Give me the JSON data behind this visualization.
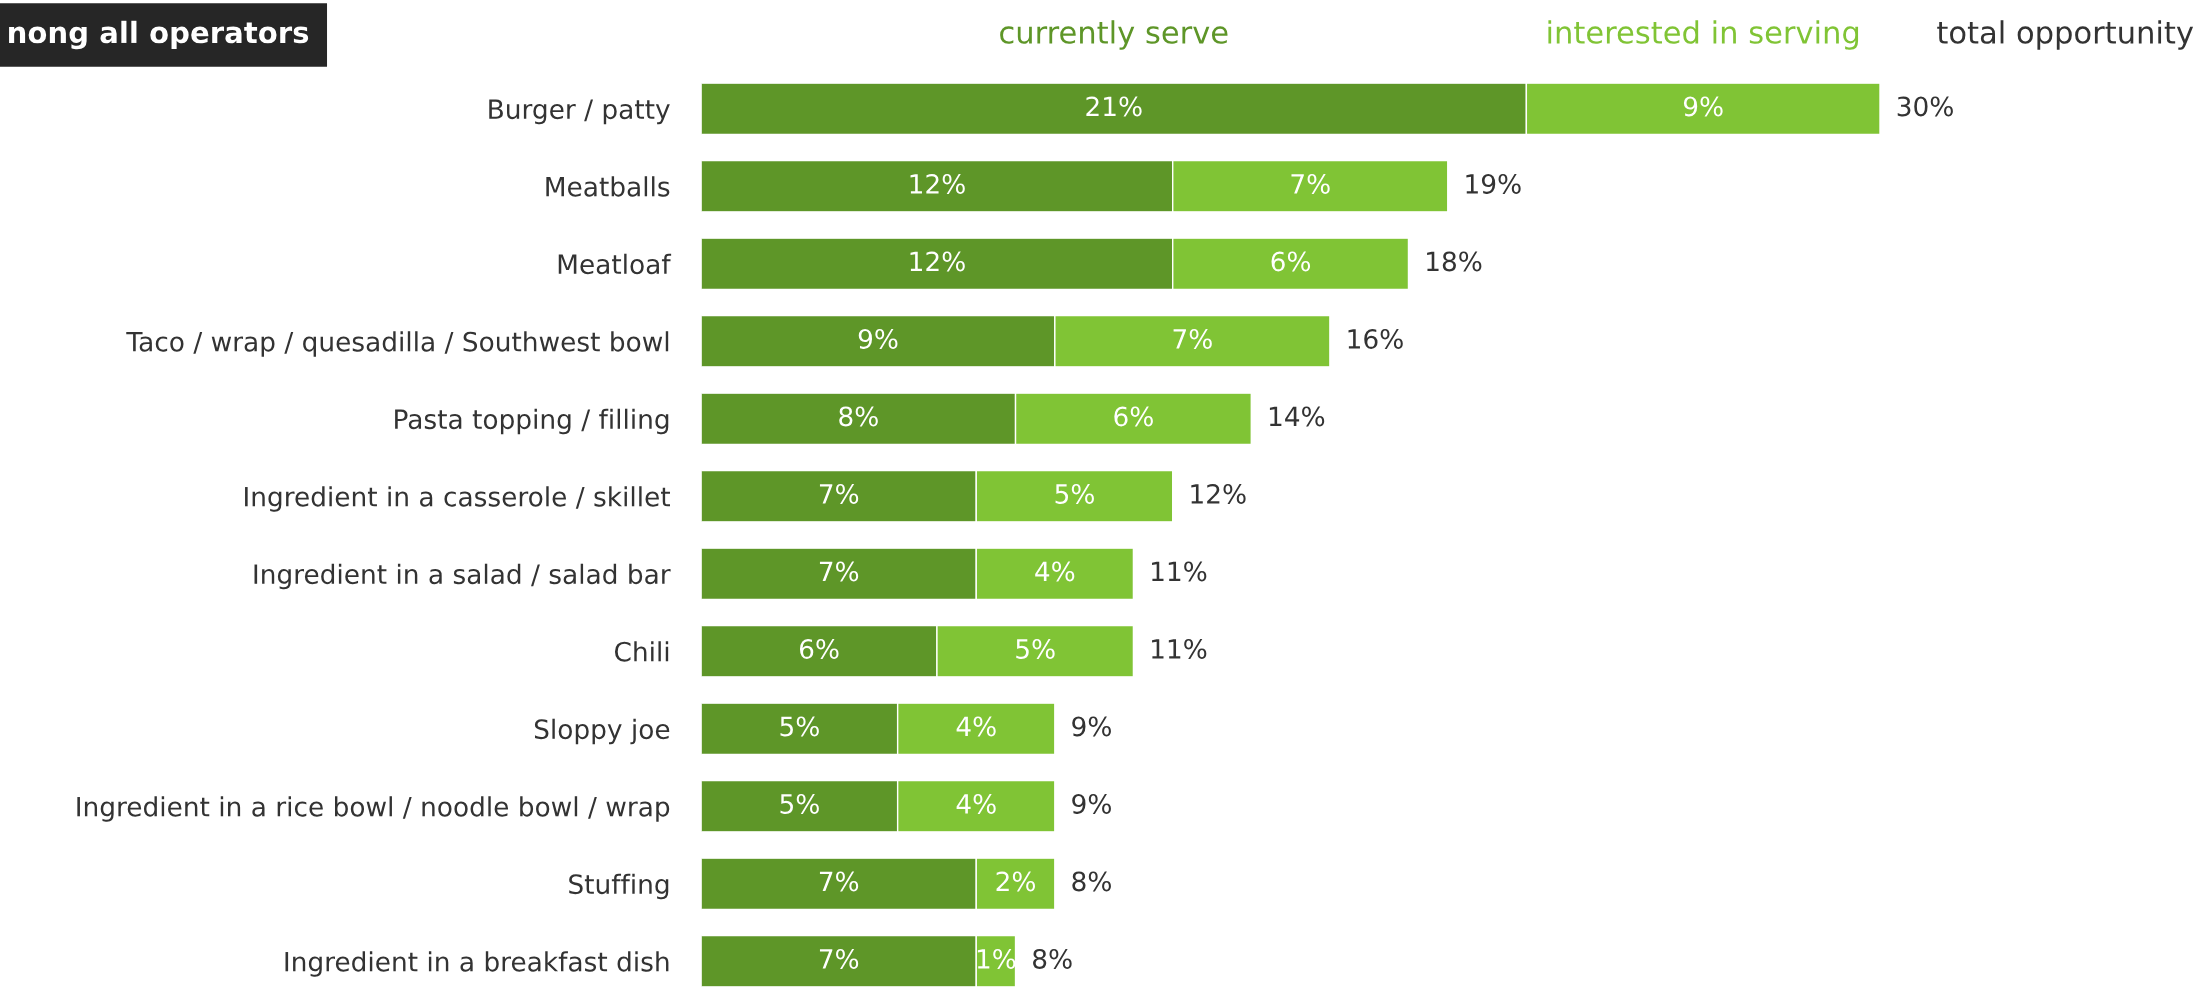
{
  "chart_data": {
    "type": "bar",
    "orientation": "horizontal",
    "stacked": true,
    "title": "nong all operators",
    "categories": [
      "Burger / patty",
      "Meatballs",
      "Meatloaf",
      "Taco / wrap / quesadilla / Southwest bowl",
      "Pasta topping / filling",
      "Ingredient in a casserole / skillet",
      "Ingredient in a salad / salad bar",
      "Chili",
      "Sloppy joe",
      "Ingredient in a rice bowl / noodle bowl / wrap",
      "Stuffing",
      "Ingredient in a breakfast dish"
    ],
    "series": [
      {
        "name": "currently serve",
        "color": "#5e9628",
        "values": [
          21,
          12,
          12,
          9,
          8,
          7,
          7,
          6,
          5,
          5,
          7,
          7
        ],
        "value_labels": [
          "21%",
          "12%",
          "12%",
          "9%",
          "8%",
          "7%",
          "7%",
          "6%",
          "5%",
          "5%",
          "7%",
          "7%"
        ]
      },
      {
        "name": "interested in serving",
        "color": "#80c435",
        "values": [
          9,
          7,
          6,
          7,
          6,
          5,
          4,
          5,
          4,
          4,
          2,
          1
        ],
        "value_labels": [
          "9%",
          "7%",
          "6%",
          "7%",
          "6%",
          "5%",
          "4%",
          "5%",
          "4%",
          "4%",
          "2%",
          "1%"
        ]
      }
    ],
    "totals": [
      "30%",
      "19%",
      "18%",
      "16%",
      "14%",
      "12%",
      "11%",
      "11%",
      "9%",
      "9%",
      "8%",
      "8%"
    ],
    "annotations": [
      "total opportunity"
    ],
    "tick_labels": "y",
    "grid": false,
    "legend": "top"
  }
}
